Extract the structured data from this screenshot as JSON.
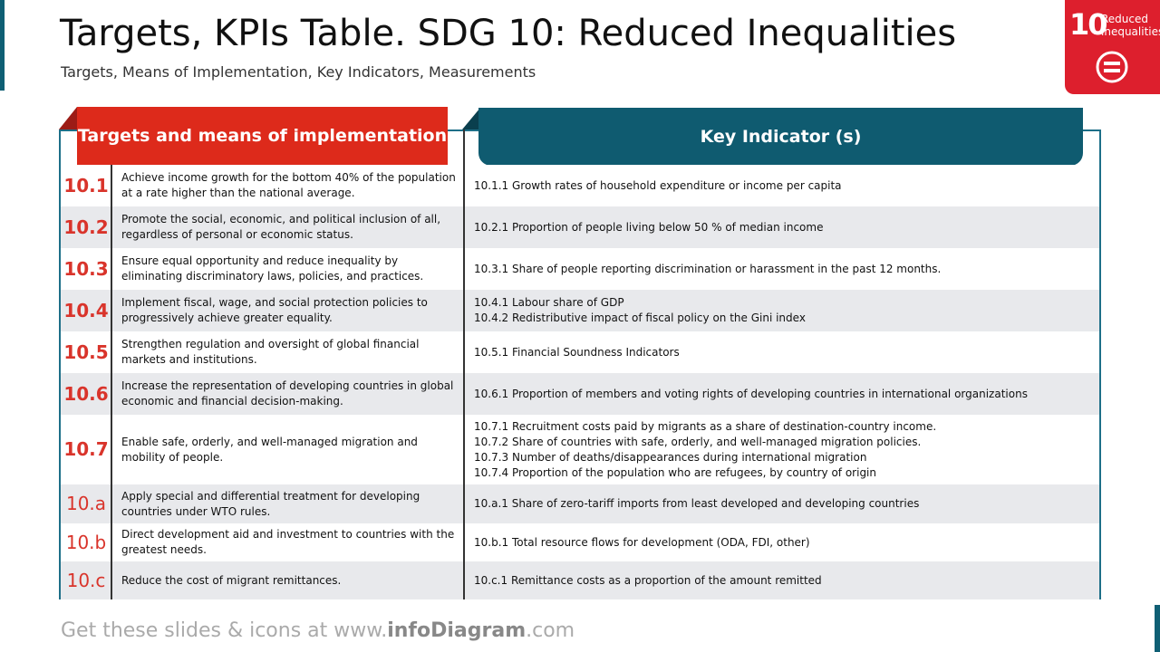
{
  "header": {
    "title": "Targets, KPIs Table. SDG 10: Reduced Inequalities",
    "subtitle": "Targets, Means of Implementation, Key Indicators, Measurements"
  },
  "badge": {
    "number": "10",
    "label": [
      "Reduced",
      "inequalities"
    ]
  },
  "table": {
    "headers": [
      "Targets and means of implementation",
      "Key Indicator (s)"
    ],
    "rows": [
      {
        "id": "10.1",
        "target": "Achieve  income growth for the bottom 40% of the population at a rate higher than the national average.",
        "indicators": [
          "10.1.1 Growth rates of household expenditure or income per capita"
        ]
      },
      {
        "id": "10.2",
        "target": "Promote the social, economic, and political inclusion of all, regardless of personal or economic status.",
        "indicators": [
          "10.2.1 Proportion of people living below 50 % of median income"
        ]
      },
      {
        "id": "10.3",
        "target": "Ensure equal opportunity and reduce inequality by eliminating discriminatory laws, policies, and practices.",
        "indicators": [
          "10.3.1 Share of people reporting discrimination or harassment in the past 12 months."
        ]
      },
      {
        "id": "10.4",
        "target": "Implement fiscal, wage, and social protection policies to progressively achieve greater equality.",
        "indicators": [
          "10.4.1 Labour share of GDP",
          "10.4.2 Redistributive impact of fiscal policy on the Gini index"
        ]
      },
      {
        "id": "10.5",
        "target": "Strengthen regulation and oversight of global financial markets and institutions.",
        "indicators": [
          "10.5.1 Financial Soundness Indicators"
        ]
      },
      {
        "id": "10.6",
        "target": "Increase the representation of developing countries in global economic and financial decision-making.",
        "indicators": [
          "10.6.1 Proportion of members and voting rights of developing countries in international organizations"
        ]
      },
      {
        "id": "10.7",
        "target": "Enable safe, orderly, and well-managed migration and mobility of people.",
        "indicators": [
          "10.7.1 Recruitment costs paid by migrants as a share of destination-country income.",
          "10.7.2 Share of countries with safe, orderly, and well-managed migration policies.",
          "10.7.3 Number of deaths/disappearances during international migration",
          "10.7.4 Proportion of the population who are refugees, by country of origin"
        ]
      },
      {
        "id": "10.a",
        "target": "Apply special and differential treatment for developing countries under WTO rules.",
        "indicators": [
          "10.a.1 Share of zero-tariff imports from least developed and developing countries"
        ]
      },
      {
        "id": "10.b",
        "target": "Direct development aid and investment to countries with the greatest needs.",
        "indicators": [
          "10.b.1 Total resource flows for development (ODA, FDI, other)"
        ]
      },
      {
        "id": "10.c",
        "target": "Reduce the cost of migrant remittances.",
        "indicators": [
          "10.c.1 Remittance costs as a proportion of the amount remitted"
        ]
      }
    ]
  },
  "footer": [
    "Get these slides & icons at www.",
    "infoDiagram",
    ".com"
  ]
}
